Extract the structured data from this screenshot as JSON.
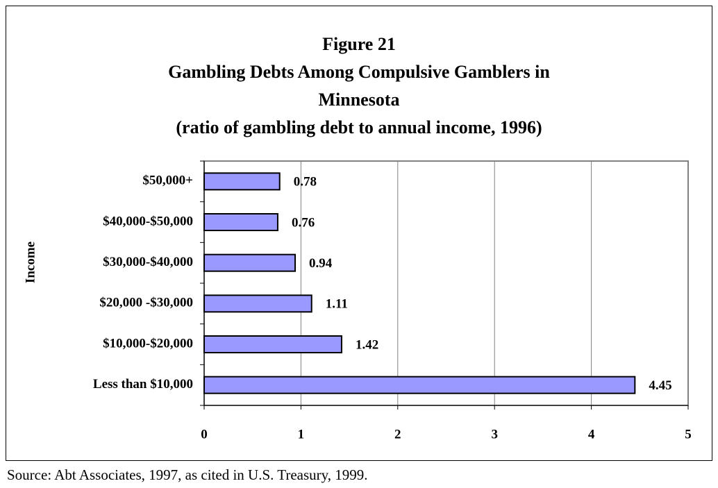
{
  "chart_data": {
    "type": "hbar",
    "title": [
      "Figure 21",
      "Gambling Debts Among Compulsive Gamblers in",
      "Minnesota",
      "(ratio of gambling debt to annual income, 1996)"
    ],
    "y_label": "Income",
    "categories": [
      "Less than $10,000",
      "$10,000-$20,000",
      "$20,000 -$30,000",
      "$30,000-$40,000",
      "$40,000-$50,000",
      "$50,000+"
    ],
    "values": [
      4.45,
      1.42,
      1.11,
      0.94,
      0.76,
      0.78
    ],
    "color": "#9999ff",
    "xlim": [
      0,
      5
    ],
    "xticks": [
      0,
      1,
      2,
      3,
      4,
      5
    ],
    "grid": true,
    "source": "Source: Abt Associates, 1997, as cited in U.S. Treasury, 1999."
  }
}
